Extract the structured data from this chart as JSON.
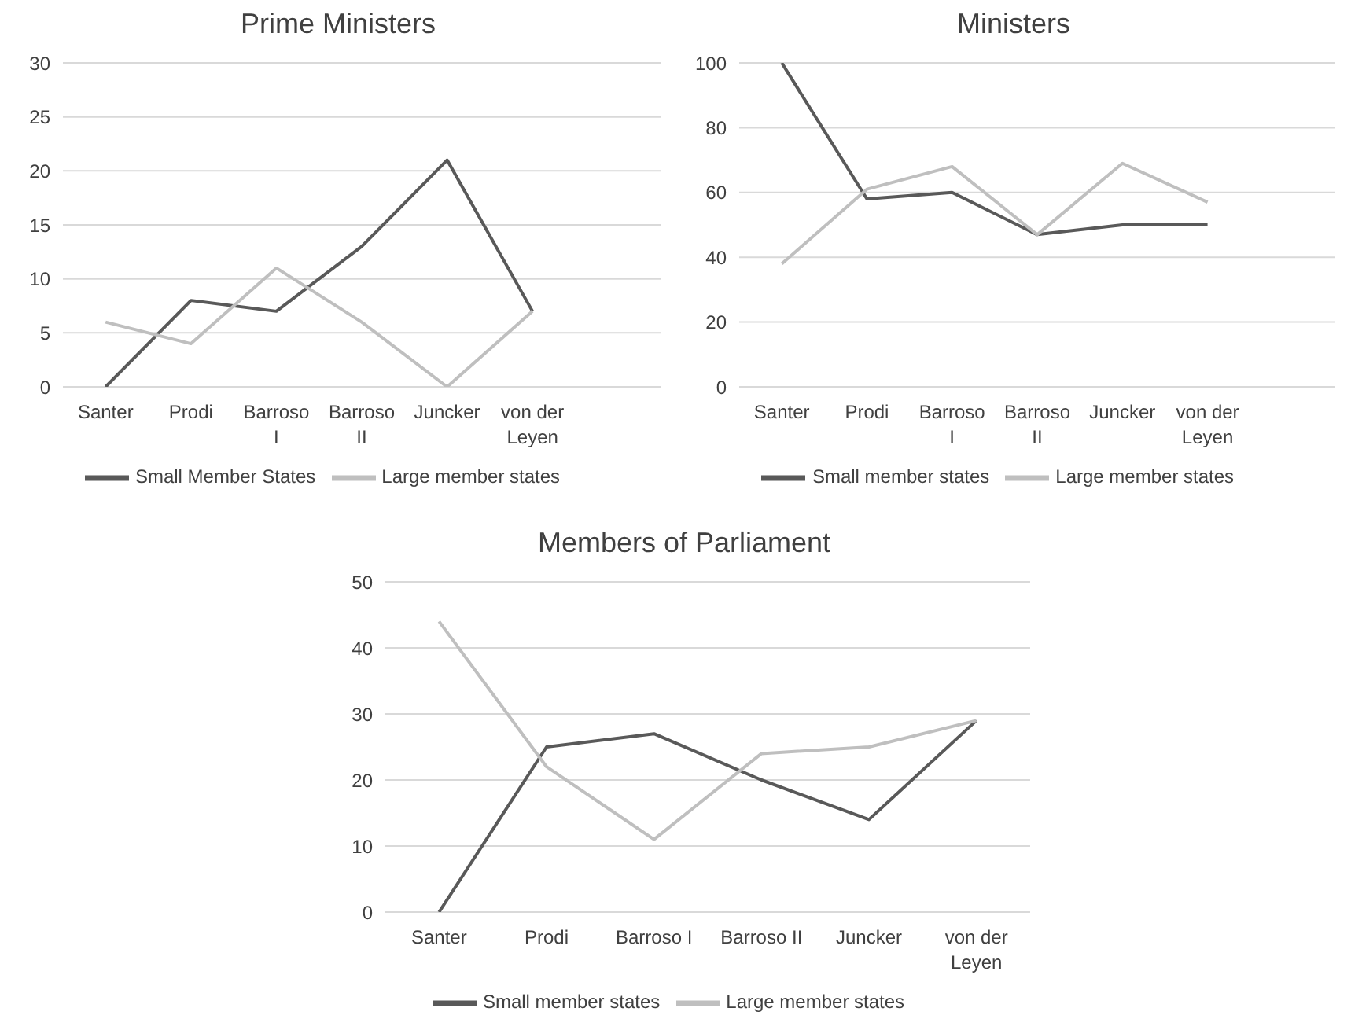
{
  "chart_data": [
    {
      "type": "line",
      "title": "Prime Ministers",
      "categories": [
        "Santer",
        "Prodi",
        "Barroso I",
        "Barroso II",
        "Juncker",
        "von der Leyen",
        null
      ],
      "series": [
        {
          "name": "Small Member States",
          "color": "#595959",
          "values": [
            0,
            8,
            7,
            13,
            21,
            7,
            null
          ]
        },
        {
          "name": "Large member states",
          "color": "#bfbfbf",
          "values": [
            6,
            4,
            11,
            6,
            0,
            7,
            null
          ]
        }
      ],
      "ylim": [
        0,
        30
      ],
      "yticks": [
        0,
        5,
        10,
        15,
        20,
        25,
        30
      ],
      "grid": "y",
      "legend": "bottom",
      "marker": "none",
      "line_style": "solid"
    },
    {
      "type": "line",
      "title": "Ministers",
      "categories": [
        "Santer",
        "Prodi",
        "Barroso I",
        "Barroso II",
        "Juncker",
        "von der Leyen",
        null
      ],
      "series": [
        {
          "name": "Small member states",
          "color": "#595959",
          "values": [
            100,
            58,
            60,
            47,
            50,
            50,
            null
          ]
        },
        {
          "name": "Large member states",
          "color": "#bfbfbf",
          "values": [
            38,
            61,
            68,
            47,
            69,
            57,
            null
          ]
        }
      ],
      "ylim": [
        0,
        100
      ],
      "yticks": [
        0,
        20,
        40,
        60,
        80,
        100
      ],
      "grid": "y",
      "legend": "bottom",
      "marker": "none",
      "line_style": "solid"
    },
    {
      "type": "line",
      "title": "Members of Parliament",
      "categories": [
        "Santer",
        "Prodi",
        "Barroso I",
        "Barroso II",
        "Juncker",
        "von der Leyen"
      ],
      "series": [
        {
          "name": "Small member states",
          "color": "#595959",
          "values": [
            0,
            25,
            27,
            20,
            14,
            29
          ]
        },
        {
          "name": "Large member states",
          "color": "#bfbfbf",
          "values": [
            44,
            22,
            11,
            24,
            25,
            29
          ]
        }
      ],
      "ylim": [
        0,
        50
      ],
      "yticks": [
        0,
        10,
        20,
        30,
        40,
        50
      ],
      "grid": "y",
      "legend": "bottom",
      "marker": "none",
      "line_style": "solid"
    }
  ]
}
